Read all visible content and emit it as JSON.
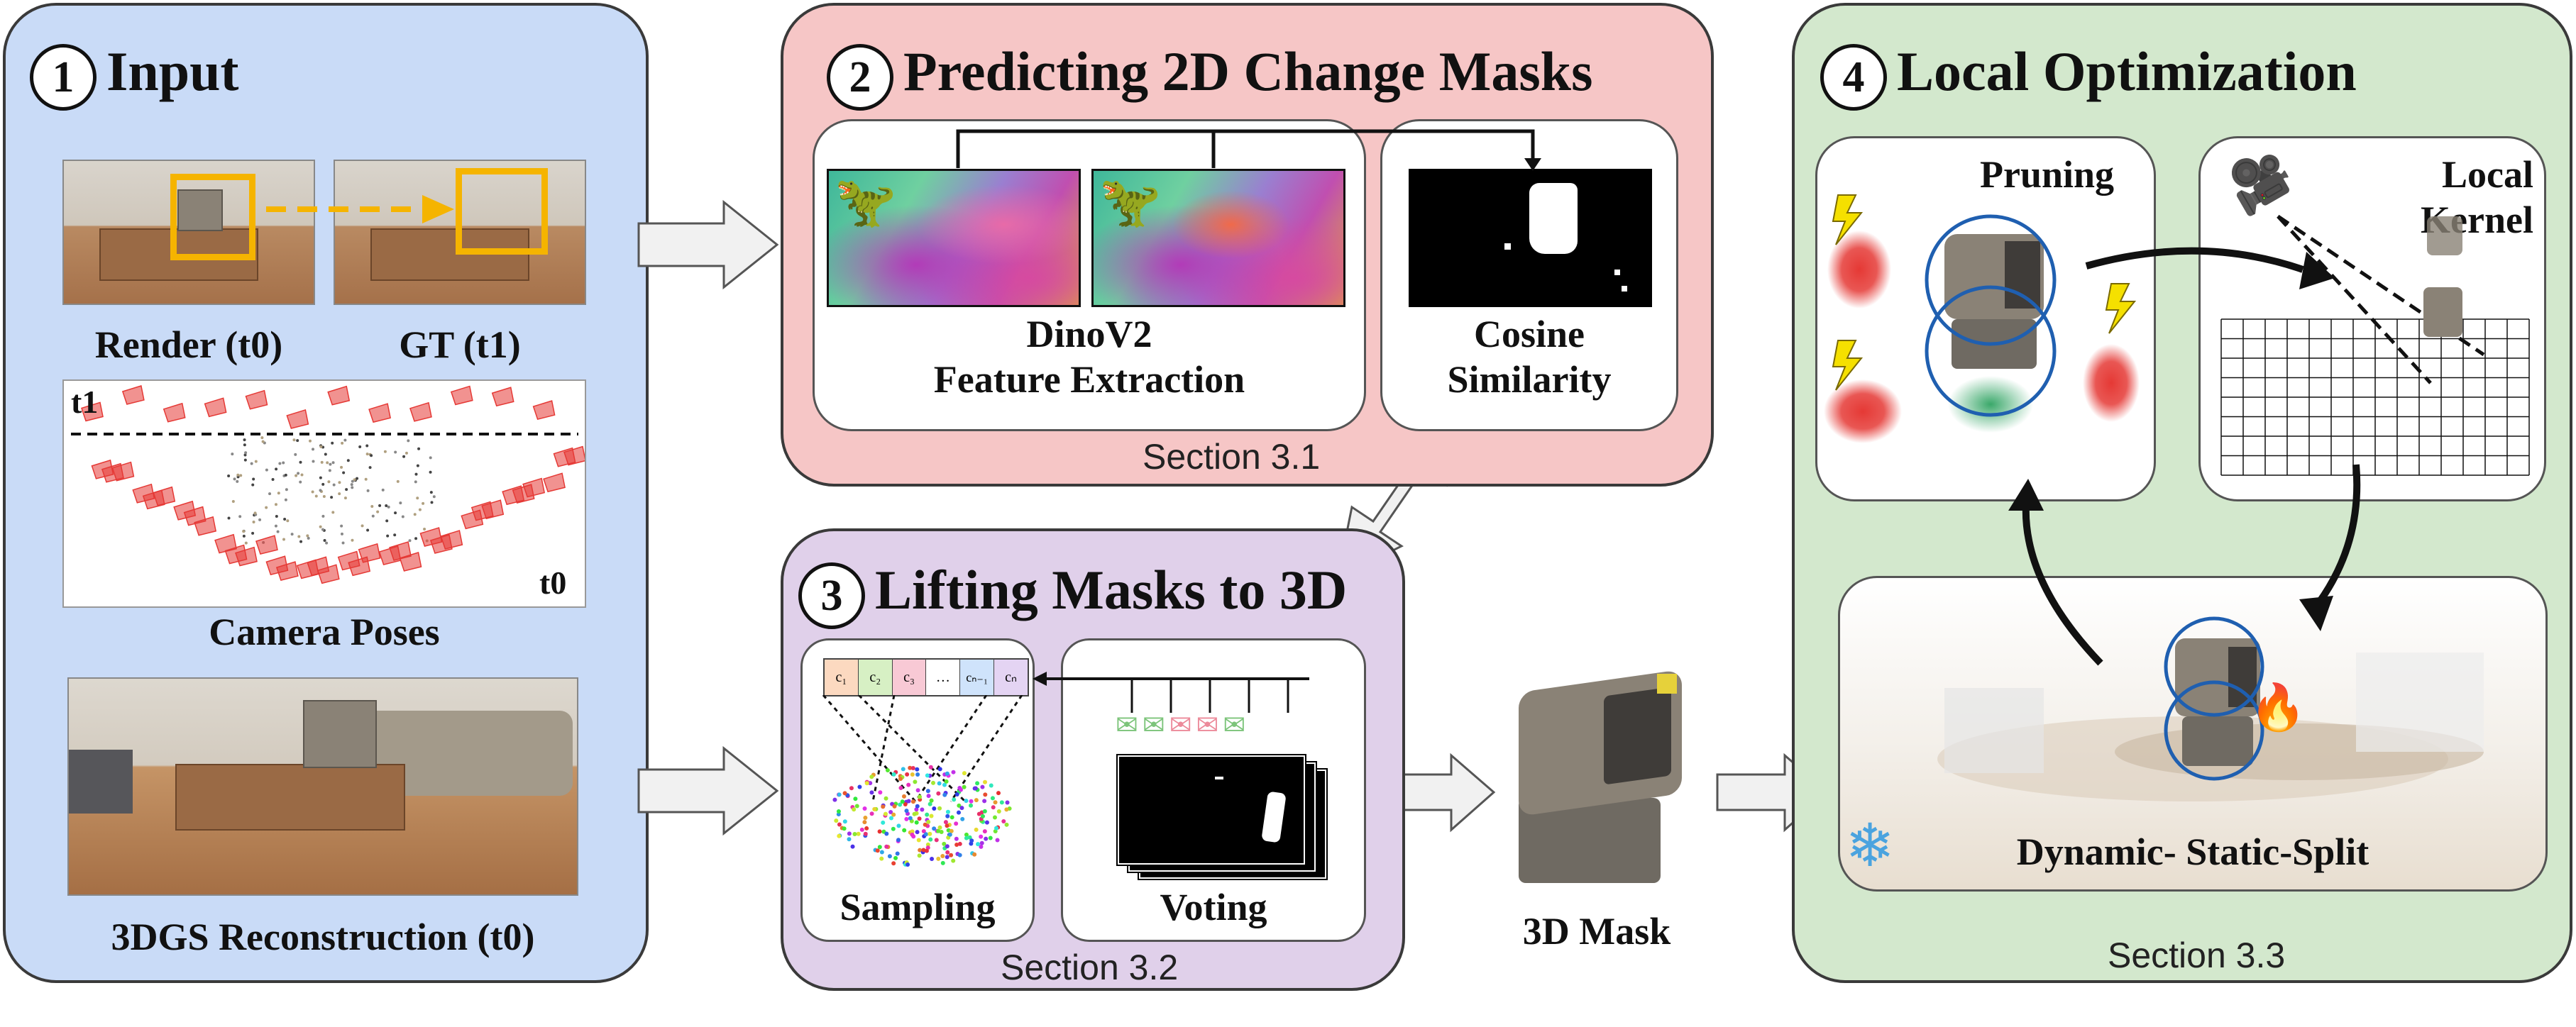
{
  "colors": {
    "input_bg": "#c9dbf7",
    "predict_bg": "#f6c6c6",
    "lift_bg": "#e0d0ea",
    "optim_bg": "#d3e8cd",
    "camera_red": "#e53935",
    "highlight_orange": "#f5b400",
    "gaussian_blue": "#1f5fb0"
  },
  "input": {
    "number": "1",
    "title": "Input",
    "render_label": "Render (t0)",
    "gt_label": "GT (t1)",
    "t1_label": "t1",
    "t0_label": "t0",
    "camera_label": "Camera Poses",
    "recon_label": "3DGS Reconstruction (t0)"
  },
  "predict": {
    "number": "2",
    "title": "Predicting 2D Change Masks",
    "feature_label_line1": "DinoV2",
    "feature_label_line2": "Feature Extraction",
    "cosine_label_line1": "Cosine",
    "cosine_label_line2": "Similarity",
    "section": "Section 3.1"
  },
  "lift": {
    "number": "3",
    "title": "Lifting Masks to 3D",
    "cells": [
      "c₁",
      "c₂",
      "c₃",
      "…",
      "cₙ₋₁",
      "cₙ"
    ],
    "sampling_label": "Sampling",
    "voting_label": "Voting",
    "section": "Section 3.2"
  },
  "mask3d": {
    "label": "3D Mask"
  },
  "optim": {
    "number": "4",
    "title": "Local Optimization",
    "pruning_label": "Pruning",
    "kernel_label_line1": "Local",
    "kernel_label_line2": "Kernel",
    "split_label": "Dynamic- Static-Split",
    "section": "Section 3.3"
  }
}
